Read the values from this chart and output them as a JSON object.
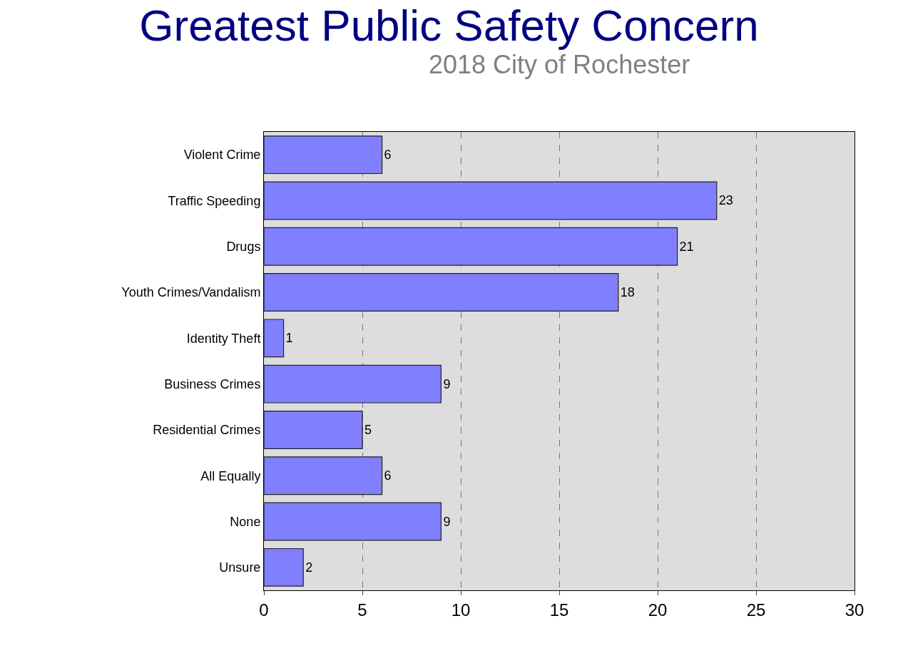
{
  "chart_data": {
    "type": "bar",
    "orientation": "horizontal",
    "title": "Greatest Public Safety Concern",
    "subtitle": "2018 City of Rochester",
    "categories": [
      "Violent Crime",
      "Traffic Speeding",
      "Drugs",
      "Youth Crimes/Vandalism",
      "Identity Theft",
      "Business Crimes",
      "Residential Crimes",
      "All Equally",
      "None",
      "Unsure"
    ],
    "values": [
      6,
      23,
      21,
      18,
      1,
      9,
      5,
      6,
      9,
      2
    ],
    "color": "#8080ff",
    "xlim": [
      0,
      30
    ],
    "xticks": [
      0,
      5,
      10,
      15,
      20,
      25,
      30
    ],
    "grid": "x",
    "data_labels": true
  }
}
